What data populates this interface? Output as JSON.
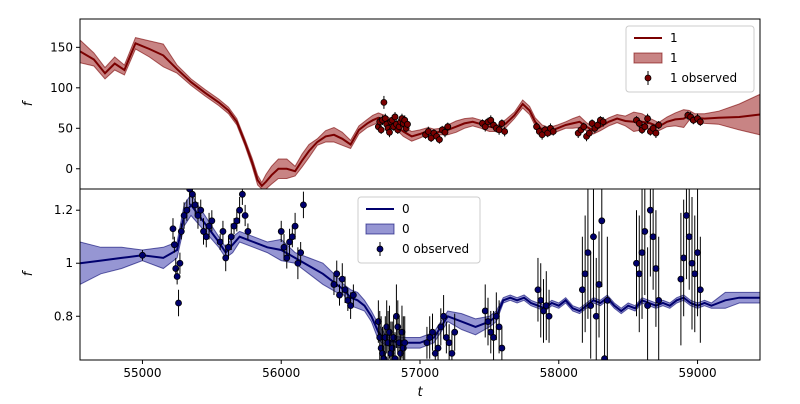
{
  "chart_data": [
    {
      "type": "line",
      "panel": "top",
      "xlabel": "",
      "ylabel": "f",
      "xlim": [
        54550,
        59450
      ],
      "ylim": [
        -25,
        185
      ],
      "yticks": [
        0,
        50,
        100,
        150
      ],
      "grid": false,
      "legend_position": "top-right",
      "legend": [
        {
          "kind": "line",
          "label": "1"
        },
        {
          "kind": "band",
          "label": "1"
        },
        {
          "kind": "points",
          "label": "1 observed"
        }
      ],
      "color": "#7a0000",
      "band_color": "#b55b5b",
      "model": {
        "x": [
          54550,
          54650,
          54730,
          54800,
          54870,
          54950,
          55050,
          55150,
          55250,
          55350,
          55450,
          55550,
          55620,
          55680,
          55740,
          55790,
          55830,
          55860,
          55890,
          55930,
          55980,
          56040,
          56100,
          56150,
          56200,
          56260,
          56320,
          56380,
          56440,
          56500,
          56560,
          56620,
          56660,
          56700,
          56760,
          56820,
          56880,
          56940,
          57000,
          57060,
          57100,
          57150,
          57200,
          57260,
          57320,
          57380,
          57440,
          57500,
          57560,
          57620,
          57680,
          57740,
          57790,
          57830,
          57880,
          57930,
          57990,
          58050,
          58100,
          58150,
          58200,
          58250,
          58300,
          58360,
          58420,
          58480,
          58540,
          58600,
          58660,
          58720,
          58780,
          58840,
          58900,
          58940,
          58980,
          59050,
          59150,
          59300,
          59450
        ],
        "y": [
          145,
          135,
          118,
          130,
          122,
          155,
          148,
          140,
          123,
          107,
          94,
          82,
          72,
          58,
          32,
          8,
          -14,
          -21,
          -16,
          -8,
          0,
          0,
          -3,
          10,
          22,
          33,
          40,
          42,
          37,
          30,
          48,
          56,
          60,
          63,
          60,
          54,
          46,
          40,
          43,
          47,
          44,
          46,
          48,
          52,
          56,
          58,
          55,
          52,
          50,
          56,
          66,
          80,
          72,
          58,
          48,
          46,
          50,
          54,
          56,
          58,
          52,
          47,
          52,
          58,
          62,
          59,
          58,
          58,
          56,
          52,
          58,
          61,
          62,
          66,
          63,
          62,
          63,
          64,
          67
        ],
        "band_half": [
          14,
          8,
          7,
          8,
          6,
          7,
          10,
          14,
          5,
          4,
          4,
          4,
          4,
          4,
          4,
          5,
          6,
          4,
          9,
          11,
          12,
          12,
          6,
          8,
          8,
          4,
          7,
          9,
          8,
          5,
          5,
          5,
          6,
          6,
          5,
          4,
          6,
          6,
          5,
          4,
          5,
          4,
          6,
          7,
          6,
          5,
          5,
          6,
          4,
          5,
          4,
          5,
          5,
          5,
          6,
          5,
          4,
          4,
          6,
          7,
          5,
          4,
          5,
          5,
          5,
          6,
          12,
          10,
          6,
          5,
          6,
          8,
          11,
          6,
          5,
          6,
          8,
          16,
          25
        ]
      },
      "observed": {
        "x": [
          56700,
          56710,
          56720,
          56730,
          56740,
          56750,
          56760,
          56770,
          56780,
          56790,
          56800,
          56810,
          56820,
          56830,
          56840,
          56850,
          56860,
          56870,
          56880,
          56890,
          56900,
          56910,
          57040,
          57060,
          57080,
          57100,
          57120,
          57140,
          57160,
          57180,
          57200,
          57450,
          57470,
          57490,
          57510,
          57530,
          57550,
          57570,
          57590,
          57610,
          57840,
          57860,
          57880,
          57900,
          57920,
          57940,
          57960,
          58140,
          58160,
          58180,
          58200,
          58220,
          58240,
          58260,
          58280,
          58300,
          58320,
          58560,
          58580,
          58600,
          58620,
          58640,
          58660,
          58680,
          58700,
          58720,
          58930,
          58950,
          58970,
          59000,
          59020
        ],
        "y": [
          52,
          58,
          48,
          60,
          82,
          62,
          55,
          50,
          45,
          58,
          60,
          52,
          64,
          55,
          48,
          52,
          58,
          62,
          56,
          60,
          50,
          55,
          42,
          46,
          38,
          44,
          40,
          36,
          48,
          45,
          52,
          56,
          52,
          58,
          60,
          54,
          50,
          48,
          56,
          46,
          52,
          46,
          42,
          48,
          44,
          50,
          46,
          44,
          48,
          52,
          40,
          44,
          56,
          50,
          54,
          60,
          58,
          60,
          56,
          48,
          52,
          62,
          46,
          50,
          44,
          54,
          66,
          64,
          60,
          62,
          58
        ],
        "err": [
          5,
          6,
          5,
          6,
          8,
          6,
          5,
          5,
          6,
          5,
          6,
          5,
          6,
          5,
          5,
          5,
          6,
          6,
          5,
          6,
          5,
          5,
          5,
          6,
          5,
          5,
          6,
          5,
          5,
          6,
          5,
          5,
          6,
          5,
          6,
          5,
          5,
          6,
          5,
          6,
          5,
          5,
          6,
          5,
          5,
          6,
          5,
          6,
          5,
          5,
          6,
          5,
          5,
          6,
          5,
          5,
          6,
          5,
          6,
          5,
          5,
          6,
          5,
          5,
          6,
          5,
          5,
          6,
          5,
          6,
          5
        ]
      }
    },
    {
      "type": "line",
      "panel": "bottom",
      "xlabel": "t",
      "ylabel": "f",
      "xlim": [
        54550,
        59450
      ],
      "ylim": [
        0.635,
        1.28
      ],
      "xticks": [
        55000,
        56000,
        57000,
        58000,
        59000
      ],
      "yticks": [
        0.8,
        1.0,
        1.2
      ],
      "grid": false,
      "legend_position": "top-center",
      "legend": [
        {
          "kind": "line",
          "label": "0"
        },
        {
          "kind": "band",
          "label": "0"
        },
        {
          "kind": "points",
          "label": "0 observed"
        }
      ],
      "color": "#00006e",
      "band_color": "#7373c4",
      "model": {
        "x": [
          54550,
          54700,
          54850,
          55000,
          55150,
          55250,
          55300,
          55350,
          55450,
          55550,
          55600,
          55650,
          55700,
          55800,
          55900,
          56000,
          56100,
          56200,
          56300,
          56400,
          56450,
          56500,
          56550,
          56600,
          56650,
          56700,
          56750,
          56800,
          56900,
          57000,
          57100,
          57200,
          57300,
          57400,
          57500,
          57550,
          57600,
          57650,
          57700,
          57750,
          57800,
          57850,
          57900,
          57950,
          58000,
          58050,
          58100,
          58150,
          58200,
          58250,
          58300,
          58350,
          58400,
          58450,
          58500,
          58550,
          58600,
          58650,
          58700,
          58750,
          58800,
          58850,
          58900,
          58950,
          59000,
          59050,
          59100,
          59150,
          59200,
          59300,
          59450
        ],
        "y": [
          1.0,
          1.01,
          1.02,
          1.03,
          1.02,
          1.05,
          1.18,
          1.22,
          1.15,
          1.08,
          1.04,
          1.07,
          1.1,
          1.08,
          1.06,
          1.05,
          1.02,
          0.99,
          0.96,
          0.92,
          0.9,
          0.87,
          0.86,
          0.84,
          0.8,
          0.74,
          0.71,
          0.705,
          0.7,
          0.7,
          0.72,
          0.8,
          0.78,
          0.76,
          0.78,
          0.8,
          0.86,
          0.87,
          0.86,
          0.87,
          0.85,
          0.84,
          0.83,
          0.85,
          0.84,
          0.86,
          0.83,
          0.82,
          0.84,
          0.86,
          0.85,
          0.87,
          0.84,
          0.82,
          0.84,
          0.83,
          0.86,
          0.85,
          0.84,
          0.85,
          0.84,
          0.86,
          0.87,
          0.85,
          0.84,
          0.85,
          0.84,
          0.85,
          0.86,
          0.87,
          0.87
        ],
        "band_half": [
          0.08,
          0.05,
          0.04,
          0.02,
          0.04,
          0.03,
          0.04,
          0.04,
          0.03,
          0.02,
          0.02,
          0.03,
          0.02,
          0.02,
          0.02,
          0.04,
          0.02,
          0.03,
          0.04,
          0.03,
          0.02,
          0.03,
          0.03,
          0.02,
          0.02,
          0.03,
          0.02,
          0.02,
          0.02,
          0.02,
          0.02,
          0.02,
          0.03,
          0.03,
          0.02,
          0.02,
          0.01,
          0.01,
          0.01,
          0.01,
          0.01,
          0.01,
          0.01,
          0.01,
          0.01,
          0.01,
          0.01,
          0.01,
          0.01,
          0.01,
          0.01,
          0.01,
          0.01,
          0.01,
          0.01,
          0.01,
          0.01,
          0.01,
          0.01,
          0.01,
          0.01,
          0.01,
          0.01,
          0.01,
          0.01,
          0.01,
          0.01,
          0.02,
          0.03,
          0.02,
          0.02
        ]
      },
      "observed": {
        "x": [
          55000,
          55220,
          55230,
          55240,
          55250,
          55260,
          55270,
          55280,
          55300,
          55320,
          55340,
          55360,
          55380,
          55400,
          55420,
          55440,
          55460,
          55480,
          55500,
          55560,
          55580,
          55600,
          55620,
          55640,
          55660,
          55680,
          55700,
          55720,
          55740,
          55760,
          56000,
          56020,
          56040,
          56060,
          56080,
          56100,
          56120,
          56140,
          56160,
          56380,
          56400,
          56420,
          56440,
          56460,
          56480,
          56500,
          56520,
          56700,
          56710,
          56720,
          56730,
          56740,
          56750,
          56760,
          56770,
          56780,
          56790,
          56800,
          56810,
          56820,
          56830,
          56840,
          56850,
          56860,
          56870,
          56880,
          56890,
          57050,
          57070,
          57090,
          57110,
          57130,
          57150,
          57170,
          57190,
          57210,
          57230,
          57250,
          57470,
          57490,
          57510,
          57530,
          57550,
          57570,
          57590,
          57850,
          57870,
          57890,
          57910,
          57930,
          58170,
          58190,
          58210,
          58230,
          58250,
          58270,
          58290,
          58310,
          58330,
          58350,
          58560,
          58580,
          58600,
          58620,
          58640,
          58660,
          58680,
          58700,
          58720,
          58880,
          58900,
          58920,
          58940,
          58960,
          58980,
          59000,
          59020
        ],
        "y": [
          1.03,
          1.13,
          1.07,
          0.98,
          0.95,
          0.85,
          1.0,
          1.12,
          1.18,
          1.2,
          1.28,
          1.26,
          1.22,
          1.18,
          1.2,
          1.12,
          1.1,
          1.14,
          1.16,
          1.08,
          1.12,
          1.02,
          1.06,
          1.1,
          1.14,
          1.16,
          1.2,
          1.26,
          1.18,
          1.12,
          1.12,
          1.06,
          1.02,
          1.08,
          1.1,
          1.14,
          1.0,
          1.04,
          1.22,
          0.92,
          0.96,
          0.88,
          0.94,
          0.9,
          0.86,
          0.84,
          0.88,
          0.78,
          0.72,
          0.68,
          0.66,
          0.64,
          0.72,
          0.76,
          0.7,
          0.74,
          0.66,
          0.68,
          0.72,
          0.64,
          0.8,
          0.76,
          0.7,
          0.66,
          0.74,
          0.68,
          0.7,
          0.7,
          0.72,
          0.74,
          0.66,
          0.68,
          0.76,
          0.8,
          0.72,
          0.7,
          0.66,
          0.74,
          0.82,
          0.78,
          0.74,
          0.72,
          0.8,
          0.76,
          0.68,
          0.9,
          0.86,
          0.82,
          0.84,
          0.8,
          0.9,
          0.96,
          1.04,
          0.84,
          1.1,
          0.8,
          0.92,
          1.16,
          0.64,
          0.86,
          1.0,
          0.96,
          1.04,
          1.12,
          0.84,
          1.2,
          1.1,
          0.98,
          0.86,
          0.94,
          1.02,
          1.18,
          1.1,
          1.0,
          0.96,
          1.04,
          0.9
        ],
        "err": [
          0.02,
          0.04,
          0.03,
          0.04,
          0.03,
          0.05,
          0.04,
          0.03,
          0.05,
          0.04,
          0.06,
          0.05,
          0.04,
          0.05,
          0.04,
          0.05,
          0.04,
          0.05,
          0.04,
          0.03,
          0.04,
          0.05,
          0.04,
          0.05,
          0.03,
          0.04,
          0.05,
          0.04,
          0.04,
          0.03,
          0.04,
          0.05,
          0.04,
          0.05,
          0.04,
          0.05,
          0.06,
          0.04,
          0.05,
          0.04,
          0.05,
          0.04,
          0.06,
          0.05,
          0.04,
          0.05,
          0.04,
          0.08,
          0.1,
          0.12,
          0.1,
          0.12,
          0.08,
          0.1,
          0.12,
          0.1,
          0.12,
          0.1,
          0.08,
          0.1,
          0.12,
          0.1,
          0.1,
          0.08,
          0.1,
          0.12,
          0.1,
          0.06,
          0.08,
          0.07,
          0.08,
          0.06,
          0.07,
          0.08,
          0.06,
          0.07,
          0.08,
          0.07,
          0.1,
          0.09,
          0.08,
          0.1,
          0.09,
          0.1,
          0.08,
          0.12,
          0.14,
          0.12,
          0.13,
          0.1,
          0.2,
          0.22,
          0.25,
          0.2,
          0.24,
          0.22,
          0.2,
          0.25,
          0.22,
          0.24,
          0.2,
          0.22,
          0.25,
          0.24,
          0.22,
          0.25,
          0.2,
          0.22,
          0.24,
          0.25,
          0.22,
          0.24,
          0.2,
          0.25,
          0.22,
          0.24,
          0.2
        ]
      }
    }
  ]
}
